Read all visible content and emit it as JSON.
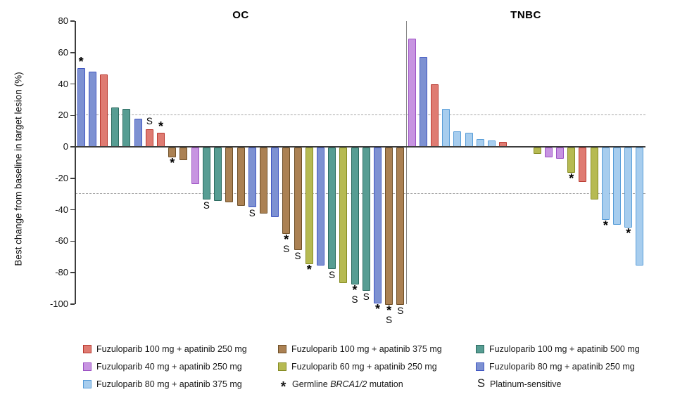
{
  "chart_data": {
    "type": "bar",
    "subtype": "waterfall",
    "ylabel": "Best change from baseline in target lesion (%)",
    "ylim": [
      -100,
      80
    ],
    "y_ticks": [
      80,
      60,
      40,
      20,
      0,
      -20,
      -40,
      -60,
      -80,
      -100
    ],
    "gridlines_dashed_at": [
      20,
      -30
    ],
    "grid": "dashed-reference-only",
    "legend_position": "bottom",
    "groups": {
      "fz100_ap250": {
        "label": "Fuzuloparib 100 mg + apatinib 250 mg",
        "fill": "#df7b72",
        "border": "#b93a31"
      },
      "fz100_ap375": {
        "label": "Fuzuloparib 100 mg + apatinib 375 mg",
        "fill": "#ab8153",
        "border": "#6e4f28"
      },
      "fz100_ap500": {
        "label": "Fuzuloparib 100 mg + apatinib 500 mg",
        "fill": "#579d93",
        "border": "#2c6b60"
      },
      "fz40_ap250": {
        "label": "Fuzuloparib 40 mg + apatinib 250 mg",
        "fill": "#c794e1",
        "border": "#9d52c4"
      },
      "fz60_ap250": {
        "label": "Fuzuloparib 60 mg + apatinib 250 mg",
        "fill": "#b6ba52",
        "border": "#868c24"
      },
      "fz80_ap250": {
        "label": "Fuzuloparib 80 mg + apatinib 250 mg",
        "fill": "#7d91d2",
        "border": "#4157c2"
      },
      "fz80_ap375": {
        "label": "Fuzuloparib 80 mg + apatinib 375 mg",
        "fill": "#a7cdee",
        "border": "#589dd8"
      }
    },
    "symbols": {
      "brca": {
        "glyph": "*",
        "label_parts": [
          {
            "text": "Germline ",
            "italic": false
          },
          {
            "text": "BRCA1/2",
            "italic": true
          },
          {
            "text": " mutation",
            "italic": false
          }
        ]
      },
      "platinum": {
        "glyph": "S",
        "label_parts": [
          {
            "text": "Platinum-sensitive",
            "italic": false
          }
        ]
      }
    },
    "panels": [
      {
        "title": "OC",
        "bars": [
          {
            "value": 50,
            "group": "fz80_ap250",
            "flags": [
              "brca"
            ]
          },
          {
            "value": 48,
            "group": "fz80_ap250",
            "flags": []
          },
          {
            "value": 46,
            "group": "fz100_ap250",
            "flags": []
          },
          {
            "value": 25,
            "group": "fz100_ap500",
            "flags": []
          },
          {
            "value": 24,
            "group": "fz100_ap500",
            "flags": []
          },
          {
            "value": 18,
            "group": "fz80_ap250",
            "flags": []
          },
          {
            "value": 11,
            "group": "fz100_ap250",
            "flags": [
              "platinum"
            ]
          },
          {
            "value": 9,
            "group": "fz100_ap250",
            "flags": [
              "brca"
            ]
          },
          {
            "value": -6,
            "group": "fz100_ap375",
            "flags": [
              "brca"
            ]
          },
          {
            "value": -8,
            "group": "fz100_ap375",
            "flags": []
          },
          {
            "value": -23,
            "group": "fz40_ap250",
            "flags": []
          },
          {
            "value": -33,
            "group": "fz100_ap500",
            "flags": [
              "platinum"
            ]
          },
          {
            "value": -34,
            "group": "fz100_ap500",
            "flags": []
          },
          {
            "value": -35,
            "group": "fz100_ap375",
            "flags": []
          },
          {
            "value": -37,
            "group": "fz100_ap375",
            "flags": []
          },
          {
            "value": -38,
            "group": "fz80_ap250",
            "flags": [
              "platinum"
            ]
          },
          {
            "value": -42,
            "group": "fz100_ap375",
            "flags": []
          },
          {
            "value": -44,
            "group": "fz80_ap250",
            "flags": []
          },
          {
            "value": -55,
            "group": "fz100_ap375",
            "flags": [
              "brca",
              "platinum"
            ]
          },
          {
            "value": -65,
            "group": "fz100_ap375",
            "flags": [
              "platinum"
            ]
          },
          {
            "value": -74,
            "group": "fz60_ap250",
            "flags": [
              "brca"
            ]
          },
          {
            "value": -75,
            "group": "fz80_ap250",
            "flags": []
          },
          {
            "value": -77,
            "group": "fz100_ap500",
            "flags": [
              "platinum"
            ]
          },
          {
            "value": -86,
            "group": "fz60_ap250",
            "flags": []
          },
          {
            "value": -87,
            "group": "fz100_ap500",
            "flags": [
              "brca",
              "platinum"
            ]
          },
          {
            "value": -91,
            "group": "fz100_ap500",
            "flags": [
              "platinum"
            ]
          },
          {
            "value": -99,
            "group": "fz80_ap250",
            "flags": [
              "brca"
            ]
          },
          {
            "value": -100,
            "group": "fz100_ap375",
            "flags": [
              "brca",
              "platinum"
            ]
          },
          {
            "value": -100,
            "group": "fz100_ap375",
            "flags": [
              "platinum"
            ]
          }
        ]
      },
      {
        "title": "TNBC",
        "bars": [
          {
            "value": 69,
            "group": "fz40_ap250",
            "flags": []
          },
          {
            "value": 57,
            "group": "fz80_ap250",
            "flags": []
          },
          {
            "value": 40,
            "group": "fz100_ap250",
            "flags": []
          },
          {
            "value": 24,
            "group": "fz80_ap375",
            "flags": []
          },
          {
            "value": 10,
            "group": "fz80_ap375",
            "flags": []
          },
          {
            "value": 9,
            "group": "fz80_ap375",
            "flags": []
          },
          {
            "value": 5,
            "group": "fz80_ap375",
            "flags": []
          },
          {
            "value": 4,
            "group": "fz80_ap375",
            "flags": []
          },
          {
            "value": 3,
            "group": "fz100_ap250",
            "flags": []
          },
          {
            "value": 0,
            "group": null,
            "flags": []
          },
          {
            "value": 0,
            "group": null,
            "flags": []
          },
          {
            "value": -4,
            "group": "fz60_ap250",
            "flags": []
          },
          {
            "value": -6,
            "group": "fz40_ap250",
            "flags": []
          },
          {
            "value": -7,
            "group": "fz40_ap250",
            "flags": []
          },
          {
            "value": -16,
            "group": "fz60_ap250",
            "flags": [
              "brca"
            ]
          },
          {
            "value": -22,
            "group": "fz100_ap250",
            "flags": []
          },
          {
            "value": -33,
            "group": "fz60_ap250",
            "flags": []
          },
          {
            "value": -46,
            "group": "fz80_ap375",
            "flags": [
              "brca"
            ]
          },
          {
            "value": -49,
            "group": "fz80_ap375",
            "flags": []
          },
          {
            "value": -51,
            "group": "fz80_ap375",
            "flags": [
              "brca"
            ]
          },
          {
            "value": -75,
            "group": "fz80_ap375",
            "flags": []
          }
        ]
      }
    ],
    "legend": {
      "columns": [
        [
          {
            "type": "swatch",
            "group": "fz100_ap250"
          },
          {
            "type": "swatch",
            "group": "fz40_ap250"
          },
          {
            "type": "swatch",
            "group": "fz80_ap375"
          }
        ],
        [
          {
            "type": "swatch",
            "group": "fz100_ap375"
          },
          {
            "type": "swatch",
            "group": "fz60_ap250"
          },
          {
            "type": "symbol",
            "symbol": "brca"
          }
        ],
        [
          {
            "type": "swatch",
            "group": "fz100_ap500"
          },
          {
            "type": "swatch",
            "group": "fz80_ap250"
          },
          {
            "type": "symbol",
            "symbol": "platinum"
          }
        ]
      ]
    }
  }
}
